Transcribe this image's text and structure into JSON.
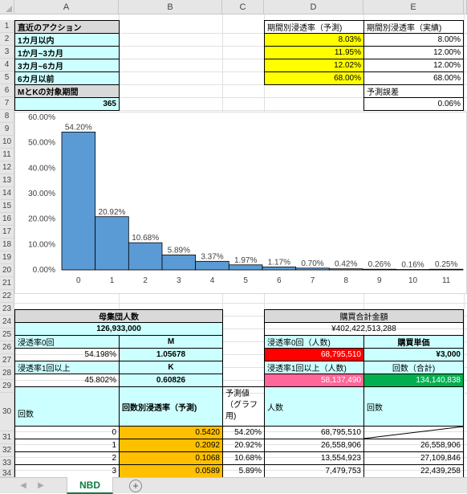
{
  "columns": [
    "A",
    "B",
    "C",
    "D",
    "E"
  ],
  "rows": [
    "1",
    "2",
    "3",
    "4",
    "5",
    "6",
    "7",
    "8",
    "9",
    "10",
    "11",
    "12",
    "13",
    "14",
    "15",
    "16",
    "17",
    "18",
    "19",
    "20",
    "21",
    "22",
    "23",
    "24",
    "25",
    "26",
    "27",
    "28",
    "29",
    "30",
    "31",
    "32",
    "33",
    "34"
  ],
  "top": {
    "a1": "直近のアクション",
    "a2": "1カ月以内",
    "a3": "1か月~3カ月",
    "a4": "3カ月~6カ月",
    "a5": "6カ月以前",
    "a6": "MとKの対象期間",
    "a7": "365",
    "d1": "期間別浸透率（予測)",
    "d2": "8.03%",
    "d3": "11.95%",
    "d4": "12.02%",
    "d5": "68.00%",
    "e1": "期間別浸透率（実績)",
    "e2": "8.00%",
    "e3": "12.00%",
    "e4": "12.00%",
    "e5": "68.00%",
    "e6": "予測誤差",
    "e7": "0.06%"
  },
  "chart_data": {
    "type": "bar",
    "categories": [
      "0",
      "1",
      "2",
      "3",
      "4",
      "5",
      "6",
      "7",
      "8",
      "9",
      "10",
      "11"
    ],
    "values": [
      54.2,
      20.92,
      10.68,
      5.89,
      3.37,
      1.97,
      1.17,
      0.7,
      0.42,
      0.26,
      0.16,
      0.25
    ],
    "value_labels": [
      "54.20%",
      "20.92%",
      "10.68%",
      "5.89%",
      "3.37%",
      "1.97%",
      "1.17%",
      "0.70%",
      "0.42%",
      "0.26%",
      "0.16%",
      "0.25%"
    ],
    "yticks": [
      "60.00%",
      "50.00%",
      "40.00%",
      "30.00%",
      "20.00%",
      "10.00%",
      "0.00%"
    ],
    "ylim": [
      0,
      60
    ],
    "bar_color": "#5b9bd5",
    "grid": false,
    "title": "",
    "xlabel": "",
    "ylabel": ""
  },
  "bottom": {
    "a24": "母集団人数",
    "a25": "126,933,000",
    "a26": "浸透率0回",
    "b26": "M",
    "a27": "54.198%",
    "b27": "1.05678",
    "a28": "浸透率1回以上",
    "b28": "K",
    "a29": "45.802%",
    "b29": "0.60826",
    "d24": "購買合計金額",
    "d25": "¥402,422,513,288",
    "d26": "浸透率0回（人数)",
    "e26": "購買単価",
    "d27": "68,795,510",
    "e27": "¥3,000",
    "d28": "浸透率1回以上（人数)",
    "e28": "回数（合計)",
    "d29": "58,137,490",
    "e29": "134,140,838",
    "a30": "回数",
    "b30": "回数別浸透率（予測)",
    "c30": "予測値（グラフ用)",
    "d30": "人数",
    "e30": "回数",
    "rows31": [
      {
        "a": "0",
        "b": "0.5420",
        "c": "54.20%",
        "d": "68,795,510",
        "e": ""
      },
      {
        "a": "1",
        "b": "0.2092",
        "c": "20.92%",
        "d": "26,558,906",
        "e": "26,558,906"
      },
      {
        "a": "2",
        "b": "0.1068",
        "c": "10.68%",
        "d": "13,554,923",
        "e": "27,109,846"
      },
      {
        "a": "3",
        "b": "0.0589",
        "c": "5.89%",
        "d": "7,479,753",
        "e": "22,439,258"
      }
    ]
  },
  "sheet": {
    "tab": "NBD",
    "add": "+",
    "prev": "◀",
    "next": "▶"
  },
  "colors": {
    "cyan": "#ccffff",
    "yellow": "#ffff00",
    "orange": "#ffc000",
    "red": "#ff0000",
    "pink": "#ff6699",
    "green": "#00b050"
  }
}
